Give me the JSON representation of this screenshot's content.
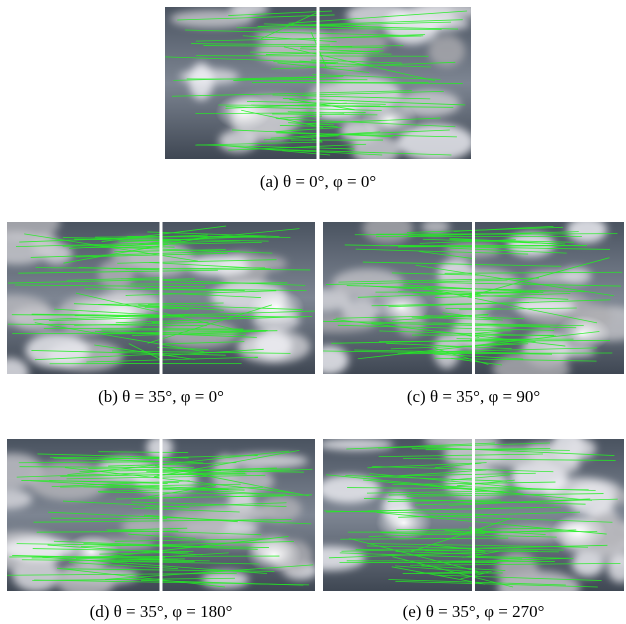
{
  "figure": {
    "panels": [
      {
        "caption": "(a) θ = 0°, φ =  0°"
      },
      {
        "caption": "(b) θ = 35°, φ =  0°"
      },
      {
        "caption": "(c) θ = 35°, φ =  90°"
      },
      {
        "caption": "(d) θ = 35°, φ =  180°"
      },
      {
        "caption": "(e) θ = 35°, φ =  270°"
      }
    ]
  }
}
